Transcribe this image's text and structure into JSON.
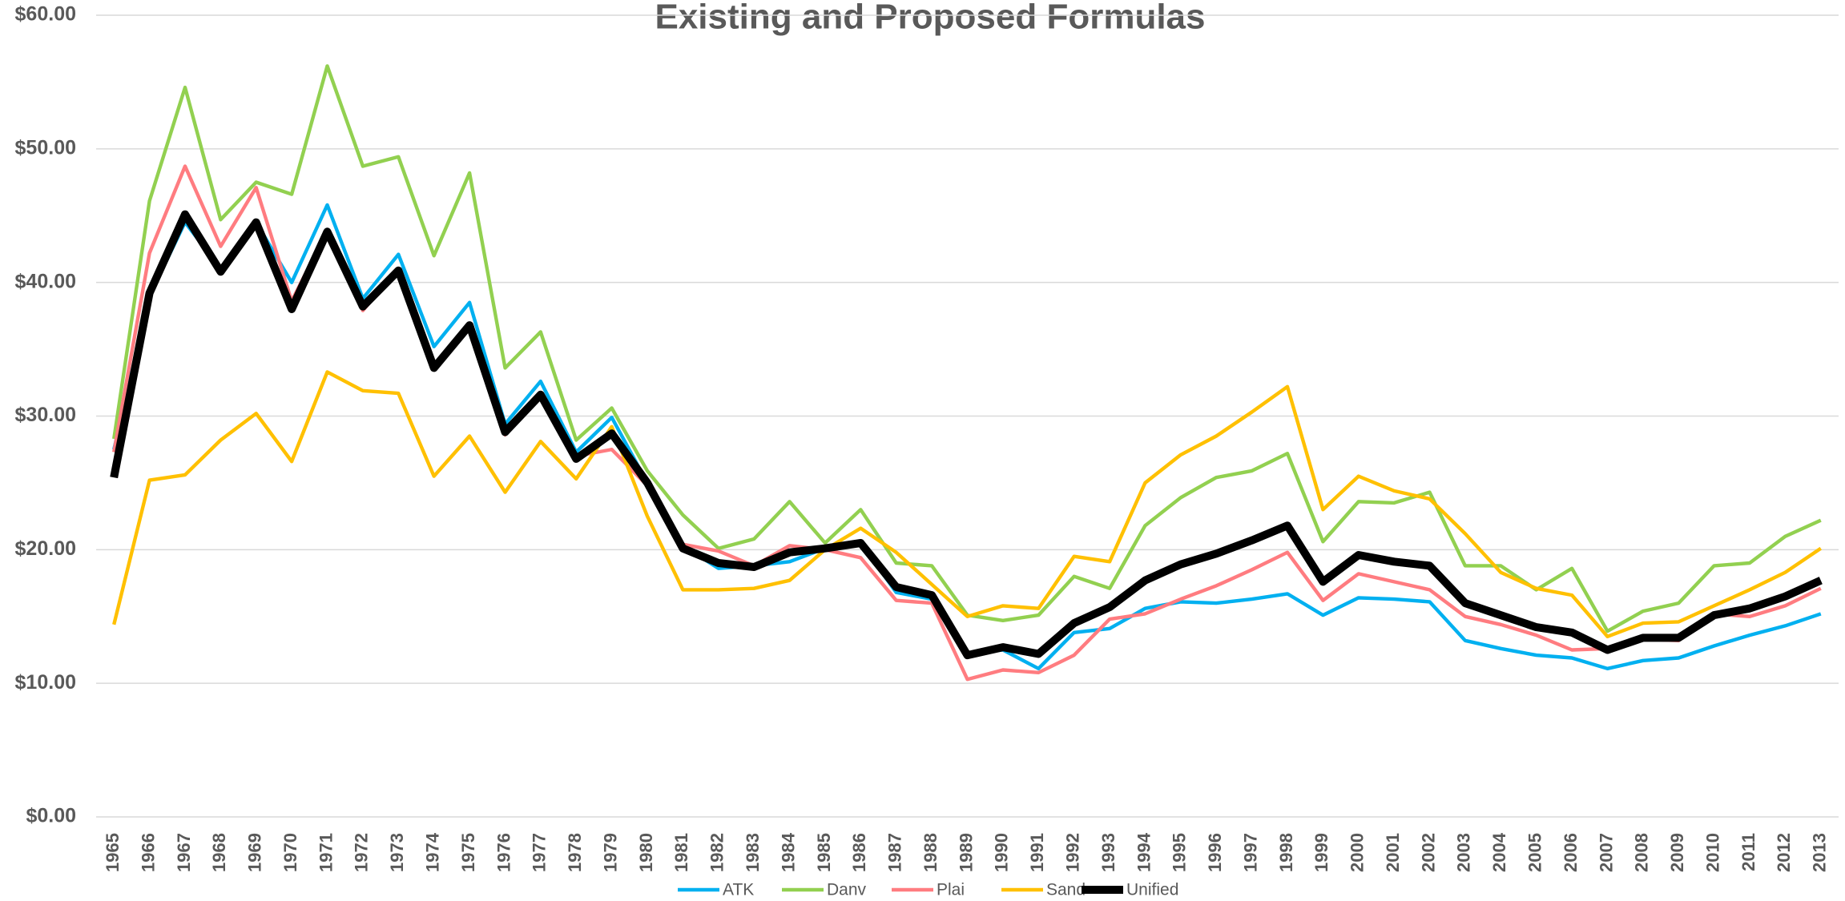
{
  "chart_data": {
    "type": "line",
    "title": "Existing and Proposed Formulas",
    "categories": [
      "1965",
      "1966",
      "1967",
      "1968",
      "1969",
      "1970",
      "1971",
      "1972",
      "1973",
      "1974",
      "1975",
      "1976",
      "1977",
      "1978",
      "1979",
      "1980",
      "1981",
      "1982",
      "1983",
      "1984",
      "1985",
      "1986",
      "1987",
      "1988",
      "1989",
      "1990",
      "1991",
      "1992",
      "1993",
      "1994",
      "1995",
      "1996",
      "1997",
      "1998",
      "1999",
      "2000",
      "2001",
      "2002",
      "2003",
      "2004",
      "2005",
      "2006",
      "2007",
      "2008",
      "2009",
      "2010",
      "2011",
      "2012",
      "2013"
    ],
    "series": [
      {
        "name": "ATK",
        "color": "#00b0f0",
        "values": [
          27.5,
          39.0,
          44.5,
          41.0,
          44.5,
          40.0,
          45.8,
          38.8,
          42.1,
          35.2,
          38.5,
          29.4,
          32.6,
          27.3,
          29.9,
          25.0,
          20.3,
          18.6,
          18.8,
          19.1,
          20.1,
          20.5,
          16.8,
          16.3,
          12.2,
          12.5,
          11.1,
          13.8,
          14.1,
          15.6,
          16.1,
          16.0,
          16.3,
          16.7,
          15.1,
          16.4,
          16.3,
          16.1,
          13.2,
          12.6,
          12.1,
          11.9,
          11.1,
          11.7,
          11.9,
          12.8,
          13.6,
          14.3,
          15.2
        ]
      },
      {
        "name": "Danv",
        "color": "#92d050",
        "values": [
          28.3,
          46.1,
          54.6,
          44.7,
          47.5,
          46.6,
          56.2,
          48.7,
          49.4,
          42.0,
          48.2,
          33.6,
          36.3,
          28.2,
          30.6,
          25.9,
          22.6,
          20.1,
          20.8,
          23.6,
          20.5,
          23.0,
          19.0,
          18.8,
          15.1,
          14.7,
          15.1,
          18.0,
          17.1,
          21.8,
          23.9,
          25.4,
          25.9,
          27.2,
          20.6,
          23.6,
          23.5,
          24.3,
          18.8,
          18.8,
          17.0,
          18.6,
          13.9,
          15.4,
          16.0,
          18.8,
          19.0,
          21.0,
          22.2
        ]
      },
      {
        "name": "Plai",
        "color": "#ff7c80",
        "values": [
          27.3,
          42.2,
          48.7,
          42.7,
          47.1,
          38.6,
          43.9,
          37.9,
          41.0,
          33.6,
          36.6,
          28.6,
          31.6,
          27.0,
          27.5,
          24.8,
          20.4,
          19.9,
          18.8,
          20.3,
          20.0,
          19.4,
          16.2,
          16.0,
          10.3,
          11.0,
          10.8,
          12.1,
          14.8,
          15.2,
          16.3,
          17.3,
          18.5,
          19.8,
          16.2,
          18.2,
          17.6,
          17.0,
          15.0,
          14.4,
          13.6,
          12.5,
          12.6,
          13.3,
          13.2,
          15.2,
          15.0,
          15.8,
          17.1
        ]
      },
      {
        "name": "Sand",
        "color": "#ffc000",
        "values": [
          14.4,
          25.2,
          25.6,
          28.2,
          30.2,
          26.6,
          33.3,
          31.9,
          31.7,
          25.5,
          28.5,
          24.3,
          28.1,
          25.3,
          29.2,
          22.5,
          17.0,
          17.0,
          17.1,
          17.7,
          20.0,
          21.6,
          19.8,
          17.4,
          15.0,
          15.8,
          15.6,
          19.5,
          19.1,
          25.0,
          27.1,
          28.5,
          30.3,
          32.2,
          23.0,
          25.5,
          24.4,
          23.8,
          21.2,
          18.3,
          17.1,
          16.6,
          13.5,
          14.5,
          14.6,
          15.8,
          17.0,
          18.3,
          20.1
        ]
      },
      {
        "name": "Unified",
        "color": "#000000",
        "values": [
          25.4,
          39.2,
          45.1,
          40.8,
          44.5,
          38.0,
          43.8,
          38.2,
          40.9,
          33.6,
          36.8,
          28.8,
          31.6,
          26.8,
          28.7,
          25.0,
          20.1,
          19.0,
          18.7,
          19.8,
          20.1,
          20.5,
          17.2,
          16.6,
          12.1,
          12.7,
          12.2,
          14.5,
          15.7,
          17.7,
          18.9,
          19.7,
          20.7,
          21.8,
          17.6,
          19.6,
          19.1,
          18.8,
          16.0,
          15.1,
          14.2,
          13.8,
          12.5,
          13.4,
          13.4,
          15.1,
          15.6,
          16.5,
          17.7
        ]
      }
    ],
    "ylim": [
      0,
      60
    ],
    "yticks": [
      {
        "value": 0,
        "label": "$0.00"
      },
      {
        "value": 10,
        "label": "$10.00"
      },
      {
        "value": 20,
        "label": "$20.00"
      },
      {
        "value": 30,
        "label": "$30.00"
      },
      {
        "value": 40,
        "label": "$40.00"
      },
      {
        "value": 50,
        "label": "$50.00"
      },
      {
        "value": 60,
        "label": "$60.00"
      }
    ],
    "grid": true,
    "legend": "bottom"
  }
}
